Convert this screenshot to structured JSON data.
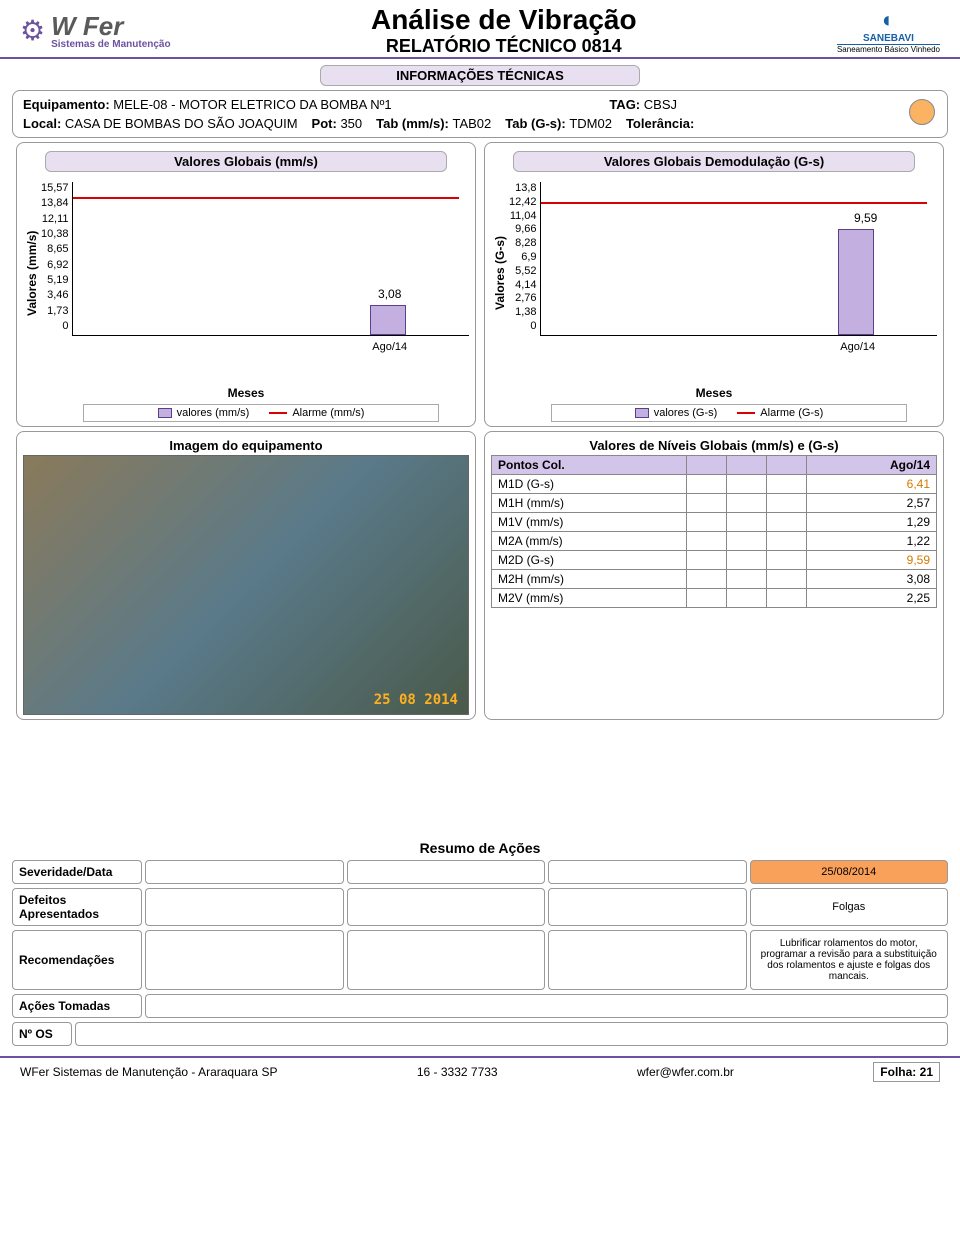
{
  "header": {
    "company": "W Fer",
    "company_sub": "Sistemas de Manutenção",
    "title": "Análise de Vibração",
    "subtitle": "RELATÓRIO TÉCNICO 0814",
    "client": "SANEBAVI",
    "client_sub": "Saneamento Básico Vinhedo"
  },
  "section_info_title": "INFORMAÇÕES TÉCNICAS",
  "info": {
    "equip_label": "Equipamento:",
    "equip_value": "MELE-08 - MOTOR ELETRICO DA BOMBA Nº1",
    "tag_label": "TAG:",
    "tag_value": "CBSJ",
    "local_label": "Local:",
    "local_value": "CASA DE BOMBAS DO SÃO JOAQUIM",
    "pot_label": "Pot:",
    "pot_value": "350",
    "tab_mms_label": "Tab (mm/s):",
    "tab_mms_value": "TAB02",
    "tab_gs_label": "Tab (G-s):",
    "tab_gs_value": "TDM02",
    "tol_label": "Tolerância:",
    "status_color": "#f9b363"
  },
  "chart1": {
    "title": "Valores Globais (mm/s)",
    "y_label": "Valores (mm/s)",
    "y_ticks": [
      "15,57",
      "13,84",
      "12,11",
      "10,38",
      "8,65",
      "6,92",
      "5,19",
      "3,46",
      "1,73",
      "0"
    ],
    "x_label": "Meses",
    "x_tick": "Ago/14",
    "bar_value": 3.08,
    "bar_label": "3,08",
    "alarm_value": 14.0,
    "y_max": 15.57,
    "bar_color": "#c3b0e0",
    "bar_border": "#5a3f8a",
    "alarm_color": "#d80000",
    "legend_values": "valores (mm/s)",
    "legend_alarm": "Alarme (mm/s)"
  },
  "chart2": {
    "title": "Valores Globais Demodulação (G-s)",
    "y_label": "Valores (G-s)",
    "y_ticks": [
      "13,8",
      "12,42",
      "11,04",
      "9,66",
      "8,28",
      "6,9",
      "5,52",
      "4,14",
      "2,76",
      "1,38",
      "0"
    ],
    "x_label": "Meses",
    "x_tick": "Ago/14",
    "bar_value": 9.59,
    "bar_label": "9,59",
    "alarm_value": 12.0,
    "y_max": 13.8,
    "bar_color": "#c3b0e0",
    "bar_border": "#5a3f8a",
    "alarm_color": "#d80000",
    "legend_values": "valores (G-s)",
    "legend_alarm": "Alarme (G-s)"
  },
  "image_title": "Imagem do equipamento",
  "image_date": "25 08 2014",
  "values_title": "Valores de Níveis Globais (mm/s) e (G-s)",
  "values_table": {
    "col_header": "Pontos Col.",
    "date_header": "Ago/14",
    "rows": [
      {
        "label": "M1D (G-s)",
        "value": "6,41",
        "highlight": true
      },
      {
        "label": "M1H (mm/s)",
        "value": "2,57",
        "highlight": false
      },
      {
        "label": "M1V (mm/s)",
        "value": "1,29",
        "highlight": false
      },
      {
        "label": "M2A (mm/s)",
        "value": "1,22",
        "highlight": false
      },
      {
        "label": "M2D (G-s)",
        "value": "9,59",
        "highlight": true
      },
      {
        "label": "M2H (mm/s)",
        "value": "3,08",
        "highlight": false
      },
      {
        "label": "M2V (mm/s)",
        "value": "2,25",
        "highlight": false
      }
    ]
  },
  "resumo": {
    "title": "Resumo de Ações",
    "sev_label": "Severidade/Data",
    "sev_date": "25/08/2014",
    "defeitos_label": "Defeitos Apresentados",
    "defeitos_value": "Folgas",
    "recom_label": "Recomendações",
    "recom_value": "Lubrificar rolamentos do motor, programar a revisão para a substituição dos rolamentos e ajuste e folgas dos mancais.",
    "acoes_label": "Ações Tomadas",
    "os_label": "Nº OS"
  },
  "footer": {
    "company": "WFer Sistemas de Manutenção  -  Araraquara SP",
    "phone": "16 - 3332 7733",
    "email": "wfer@wfer.com.br",
    "folha_label": "Folha:",
    "folha_value": "21"
  }
}
